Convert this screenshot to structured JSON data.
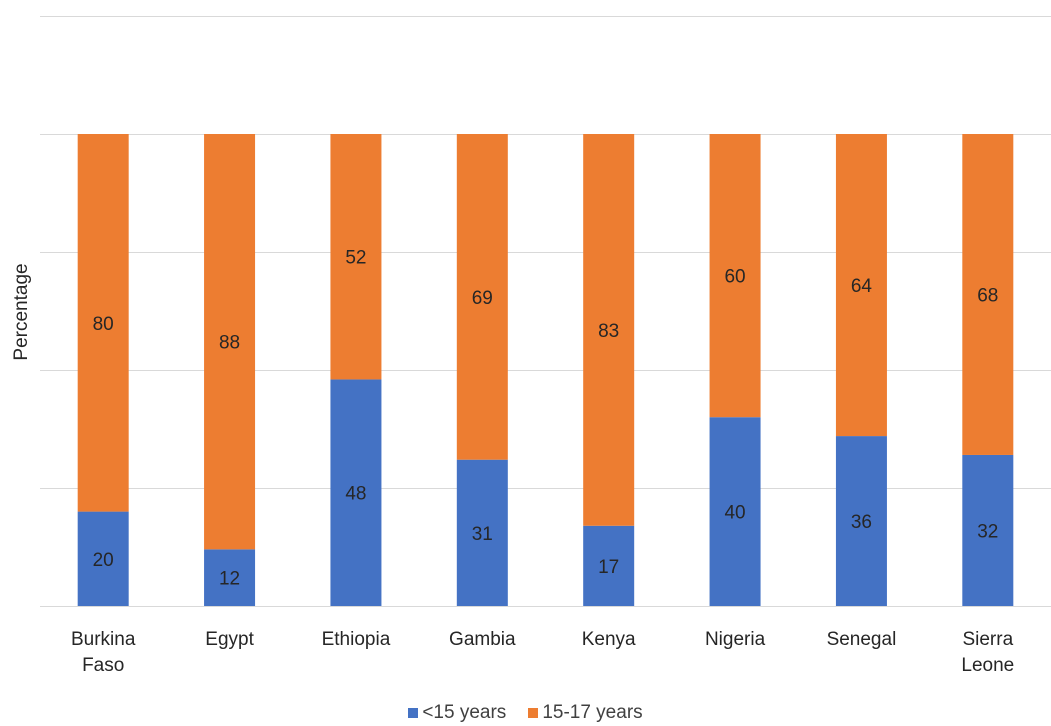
{
  "chart_data": {
    "type": "bar",
    "stacked": true,
    "normalized": true,
    "title": "",
    "xlabel": "",
    "ylabel": "Percentage",
    "ylim": [
      0,
      125
    ],
    "grid": true,
    "legend_position": "bottom",
    "categories": [
      "Burkina Faso",
      "Egypt",
      "Ethiopia",
      "Gambia",
      "Kenya",
      "Nigeria",
      "Senegal",
      "Sierra Leone"
    ],
    "series": [
      {
        "name": "<15 years",
        "color": "#4472C4",
        "values": [
          20,
          12,
          48,
          31,
          17,
          40,
          36,
          32
        ]
      },
      {
        "name": "15-17 years",
        "color": "#ED7D31",
        "values": [
          80,
          88,
          52,
          69,
          83,
          60,
          64,
          68
        ]
      }
    ]
  }
}
